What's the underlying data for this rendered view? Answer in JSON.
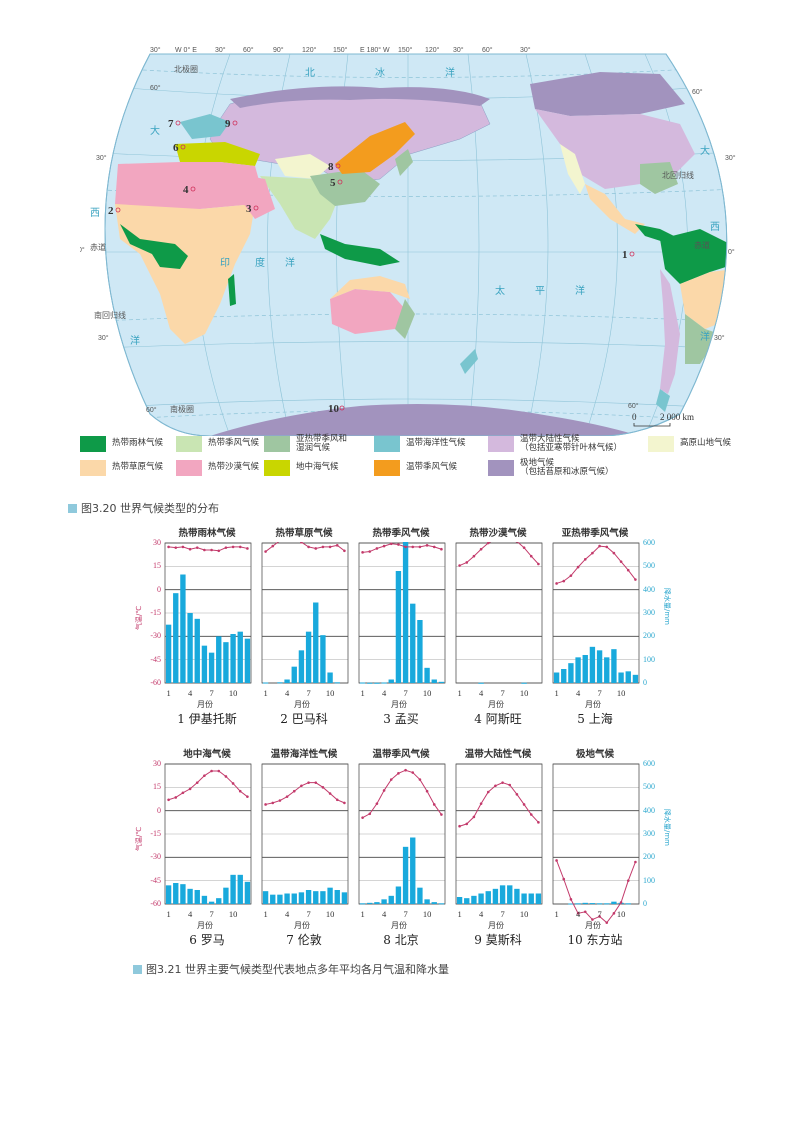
{
  "map": {
    "longitude_labels": [
      "30°",
      "W 0° E",
      "30°",
      "60°",
      "90°",
      "120°",
      "150°",
      "E 180° W",
      "150°",
      "120°",
      "30°",
      "60°",
      "30°"
    ],
    "latitude_labels": {
      "n60_left": "60°",
      "n30_left": "30°",
      "eq_left": "0°",
      "s30_left": "30°",
      "s60_left": "60°",
      "n60_right": "60°",
      "n30_right": "30°",
      "eq_right": "0°",
      "s30_right": "30°",
      "s60_right": "60°"
    },
    "line_labels": {
      "arctic_circle": "北极圈",
      "tropic_cancer": "北回归线",
      "equator_left": "赤道",
      "equator_right": "赤道",
      "tropic_capricorn": "南回归线",
      "antarctic_circle": "南极圈"
    },
    "ocean_labels": {
      "arctic_1": "北",
      "arctic_2": "冰",
      "arctic_3": "洋",
      "atlantic_n_left": "大",
      "atlantic_w_left": "西",
      "atlantic_s_left": "洋",
      "indian_1": "印",
      "indian_2": "度",
      "indian_3": "洋",
      "pacific_1": "太",
      "pacific_2": "平",
      "pacific_3": "洋",
      "atlantic_n_right": "大",
      "atlantic_w_right": "西",
      "atlantic_s_right": "洋"
    },
    "station_markers": [
      "1",
      "2",
      "3",
      "4",
      "5",
      "6",
      "7",
      "8",
      "9",
      "10"
    ],
    "scale": {
      "zero": "0",
      "distance": "2 000 km"
    }
  },
  "legend": {
    "items": [
      {
        "label": "热带雨林气候",
        "color": "#0e9a48"
      },
      {
        "label": "热带季风气候",
        "color": "#c9e5b3"
      },
      {
        "label": "亚热带季风和\n湿润气候",
        "color": "#9fc6a1"
      },
      {
        "label": "温带海洋性气候",
        "color": "#79c5cf"
      },
      {
        "label": "温带大陆性气候\n（包括亚寒带针叶林气候）",
        "color": "#d4b9dd"
      },
      {
        "label": "高原山地气候",
        "color": "#f3f5cf"
      },
      {
        "label": "热带草原气候",
        "color": "#fbd8a9"
      },
      {
        "label": "热带沙漠气候",
        "color": "#f2a6c0"
      },
      {
        "label": "地中海气候",
        "color": "#c9d600"
      },
      {
        "label": "温带季风气候",
        "color": "#f39c1e"
      },
      {
        "label": "极地气候\n（包括苔原和冰原气候）",
        "color": "#a293be"
      }
    ]
  },
  "captions": {
    "fig_320": "图3.20  世界气候类型的分布",
    "fig_321": "图3.21  世界主要气候类型代表地点多年平均各月气温和降水量"
  },
  "chart_common": {
    "temp_axis_title": "气温/℃",
    "precip_axis_title": "降水量/mm",
    "temp_ticks": [
      "30",
      "15",
      "0",
      "-15",
      "-30",
      "-45",
      "-60"
    ],
    "precip_ticks": [
      "600",
      "500",
      "400",
      "300",
      "200",
      "100",
      "0"
    ],
    "month_ticks": [
      "1",
      "4",
      "7",
      "10"
    ],
    "month_label": "月份",
    "temp_color": "#c33a6b",
    "precip_color": "#19a9dc"
  },
  "chart_data": [
    {
      "type": "bar+line",
      "title": "热带雨林气候",
      "station": "1   伊基托斯",
      "x": [
        1,
        2,
        3,
        4,
        5,
        6,
        7,
        8,
        9,
        10,
        11,
        12
      ],
      "xlabel": "月份",
      "ylabel": "气温/℃",
      "y2label": "降水量/mm",
      "ylim": [
        -60,
        30
      ],
      "y2lim": [
        0,
        600
      ],
      "series": [
        {
          "name": "气温",
          "type": "line",
          "values": [
            27.5,
            27,
            27.5,
            26,
            27,
            25.5,
            25.5,
            25,
            27,
            27.5,
            27.5,
            26.5
          ]
        },
        {
          "name": "降水量",
          "type": "bar",
          "values": [
            250,
            385,
            465,
            300,
            275,
            160,
            130,
            200,
            175,
            210,
            220,
            190
          ]
        }
      ]
    },
    {
      "type": "bar+line",
      "title": "热带草原气候",
      "station": "2   巴马科",
      "x": [
        1,
        2,
        3,
        4,
        5,
        6,
        7,
        8,
        9,
        10,
        11,
        12
      ],
      "xlabel": "月份",
      "ylabel": "气温/℃",
      "y2label": "降水量/mm",
      "ylim": [
        -60,
        30
      ],
      "y2lim": [
        0,
        600
      ],
      "series": [
        {
          "name": "气温",
          "type": "line",
          "values": [
            24.5,
            28,
            31.5,
            33,
            33,
            30.5,
            27.5,
            26.5,
            27.5,
            27.5,
            28.5,
            25
          ]
        },
        {
          "name": "降水量",
          "type": "bar",
          "values": [
            2,
            0,
            3,
            15,
            70,
            140,
            220,
            345,
            205,
            45,
            3,
            0
          ]
        }
      ]
    },
    {
      "type": "bar+line",
      "title": "热带季风气候",
      "station": "3   孟买",
      "x": [
        1,
        2,
        3,
        4,
        5,
        6,
        7,
        8,
        9,
        10,
        11,
        12
      ],
      "xlabel": "月份",
      "ylabel": "气温/℃",
      "y2label": "降水量/mm",
      "ylim": [
        -60,
        30
      ],
      "y2lim": [
        0,
        600
      ],
      "series": [
        {
          "name": "气温",
          "type": "line",
          "values": [
            24,
            24.5,
            26.5,
            28,
            29.5,
            29,
            27.5,
            27.5,
            27.5,
            28.5,
            27.5,
            26
          ]
        },
        {
          "name": "降水量",
          "type": "bar",
          "values": [
            2,
            1,
            1,
            2,
            15,
            480,
            620,
            340,
            270,
            65,
            15,
            5
          ]
        }
      ]
    },
    {
      "type": "bar+line",
      "title": "热带沙漠气候",
      "station": "4   阿斯旺",
      "x": [
        1,
        2,
        3,
        4,
        5,
        6,
        7,
        8,
        9,
        10,
        11,
        12
      ],
      "xlabel": "月份",
      "ylabel": "气温/℃",
      "y2label": "降水量/mm",
      "ylim": [
        -60,
        30
      ],
      "y2lim": [
        0,
        600
      ],
      "series": [
        {
          "name": "气温",
          "type": "line",
          "values": [
            15.5,
            17.5,
            21.5,
            26,
            30,
            32.5,
            33,
            33,
            31,
            27,
            21.5,
            16.5
          ]
        },
        {
          "name": "降水量",
          "type": "bar",
          "values": [
            0,
            0,
            0,
            1,
            0,
            0,
            0,
            0,
            0,
            1,
            0,
            0
          ]
        }
      ]
    },
    {
      "type": "bar+line",
      "title": "亚热带季风气候",
      "station": "5   上海",
      "x": [
        1,
        2,
        3,
        4,
        5,
        6,
        7,
        8,
        9,
        10,
        11,
        12
      ],
      "xlabel": "月份",
      "ylabel": "气温/℃",
      "y2label": "降水量/mm",
      "ylim": [
        -60,
        30
      ],
      "y2lim": [
        0,
        600
      ],
      "series": [
        {
          "name": "气温",
          "type": "line",
          "values": [
            4,
            5.5,
            9,
            14.5,
            19.5,
            23.5,
            28,
            27.5,
            23.5,
            18,
            12.5,
            6.5
          ]
        },
        {
          "name": "降水量",
          "type": "bar",
          "values": [
            45,
            60,
            85,
            110,
            120,
            155,
            140,
            110,
            145,
            45,
            50,
            35
          ]
        }
      ]
    },
    {
      "type": "bar+line",
      "title": "地中海气候",
      "station": "6   罗马",
      "x": [
        1,
        2,
        3,
        4,
        5,
        6,
        7,
        8,
        9,
        10,
        11,
        12
      ],
      "xlabel": "月份",
      "ylabel": "气温/℃",
      "y2label": "降水量/mm",
      "ylim": [
        -60,
        30
      ],
      "y2lim": [
        0,
        600
      ],
      "series": [
        {
          "name": "气温",
          "type": "line",
          "values": [
            7,
            8.5,
            11.5,
            14,
            18,
            22.5,
            25.5,
            25.5,
            22,
            17.5,
            12.5,
            9
          ]
        },
        {
          "name": "降水量",
          "type": "bar",
          "values": [
            80,
            90,
            85,
            65,
            60,
            35,
            10,
            25,
            70,
            125,
            125,
            95
          ]
        }
      ]
    },
    {
      "type": "bar+line",
      "title": "温带海洋性气候",
      "station": "7   伦敦",
      "x": [
        1,
        2,
        3,
        4,
        5,
        6,
        7,
        8,
        9,
        10,
        11,
        12
      ],
      "xlabel": "月份",
      "ylabel": "气温/℃",
      "y2label": "降水量/mm",
      "ylim": [
        -60,
        30
      ],
      "y2lim": [
        0,
        600
      ],
      "series": [
        {
          "name": "气温",
          "type": "line",
          "values": [
            4,
            5,
            6.5,
            9,
            12.5,
            16,
            18,
            18,
            15,
            11,
            7,
            5
          ]
        },
        {
          "name": "降水量",
          "type": "bar",
          "values": [
            55,
            40,
            40,
            45,
            45,
            50,
            60,
            55,
            55,
            70,
            60,
            50
          ]
        }
      ]
    },
    {
      "type": "bar+line",
      "title": "温带季风气候",
      "station": "8   北京",
      "x": [
        1,
        2,
        3,
        4,
        5,
        6,
        7,
        8,
        9,
        10,
        11,
        12
      ],
      "xlabel": "月份",
      "ylabel": "气温/℃",
      "y2label": "降水量/mm",
      "ylim": [
        -60,
        30
      ],
      "y2lim": [
        0,
        600
      ],
      "series": [
        {
          "name": "气温",
          "type": "line",
          "values": [
            -4.5,
            -2,
            4.5,
            13,
            20,
            24,
            26,
            24.5,
            20,
            12.5,
            4,
            -2.5
          ]
        },
        {
          "name": "降水量",
          "type": "bar",
          "values": [
            3,
            5,
            8,
            20,
            35,
            75,
            245,
            285,
            70,
            20,
            8,
            3
          ]
        }
      ]
    },
    {
      "type": "bar+line",
      "title": "温带大陆性气候",
      "station": "9   莫斯科",
      "x": [
        1,
        2,
        3,
        4,
        5,
        6,
        7,
        8,
        9,
        10,
        11,
        12
      ],
      "xlabel": "月份",
      "ylabel": "气温/℃",
      "y2label": "降水量/mm",
      "ylim": [
        -60,
        30
      ],
      "y2lim": [
        0,
        600
      ],
      "series": [
        {
          "name": "气温",
          "type": "line",
          "values": [
            -10,
            -8.5,
            -4,
            4.5,
            12,
            16,
            18,
            16.5,
            10.5,
            4,
            -2.5,
            -7.5
          ]
        },
        {
          "name": "降水量",
          "type": "bar",
          "values": [
            30,
            25,
            35,
            45,
            55,
            65,
            80,
            80,
            65,
            45,
            45,
            45
          ]
        }
      ]
    },
    {
      "type": "bar+line",
      "title": "极地气候",
      "station": "10   东方站",
      "x": [
        1,
        2,
        3,
        4,
        5,
        6,
        7,
        8,
        9,
        10,
        11,
        12
      ],
      "xlabel": "月份",
      "ylabel": "气温/℃",
      "y2label": "降水量/mm",
      "ylim": [
        -75,
        30
      ],
      "y2lim": [
        0,
        600
      ],
      "series": [
        {
          "name": "气温",
          "type": "line",
          "values": [
            -32,
            -44,
            -57,
            -66,
            -65,
            -70,
            -68,
            -72,
            -66,
            -59,
            -45,
            -33
          ]
        },
        {
          "name": "降水量",
          "type": "bar",
          "values": [
            0,
            0,
            2,
            3,
            5,
            4,
            3,
            3,
            10,
            5,
            3,
            0
          ]
        }
      ]
    }
  ]
}
